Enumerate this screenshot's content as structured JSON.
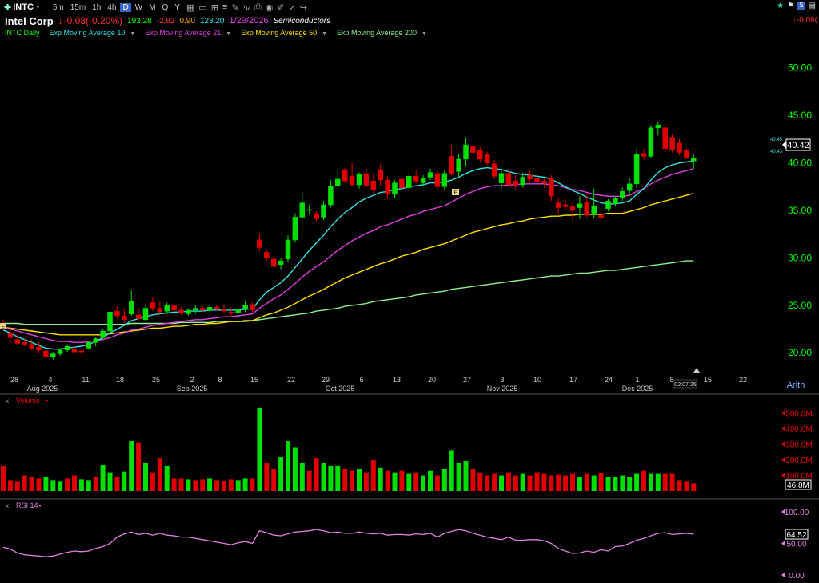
{
  "toolbar": {
    "symbol": "INTC",
    "intervals": [
      "5m",
      "15m",
      "1h",
      "4h",
      "D",
      "W",
      "M",
      "Q",
      "Y"
    ],
    "active_interval": "D"
  },
  "quote": {
    "company": "Intel Corp",
    "change": "-0.08(-0.20%)",
    "v1": "193.28",
    "v2": "-2.82",
    "v3": "0.90",
    "v4": "123.20",
    "date": "1/29/2026",
    "sector": "Semiconductors",
    "right_change": "-0.08("
  },
  "legend": {
    "symbol_label": "INTC Daily",
    "ema10": "Exp Moving Average 10",
    "ema21": "Exp Moving Average 21",
    "ema50": "Exp Moving Average 50",
    "ema200": "Exp Moving Average 200"
  },
  "price_panel": {
    "y_ticks": [
      "50.00",
      "45.00",
      "40.00",
      "35.00",
      "30.00",
      "25.00",
      "20.00"
    ],
    "last_price": "40.42",
    "ema_small_1": "40.45",
    "ema_small_2": "40.43",
    "x_days": [
      "28",
      "4",
      "11",
      "18",
      "25",
      "2",
      "8",
      "15",
      "22",
      "29",
      "6",
      "13",
      "20",
      "27",
      "3",
      "10",
      "17",
      "24",
      "1",
      "8",
      "15",
      "22"
    ],
    "x_months": [
      "Aug 2025",
      "Sep 2025",
      "Oct 2025",
      "Nov 2025",
      "Dec 2025"
    ],
    "scale_label": "Arith",
    "time_stamp": "02:07:25",
    "marker_1": "E",
    "marker_2": "E"
  },
  "volume_panel": {
    "label": "Volume",
    "y_ticks": [
      "500.0M",
      "400.0M",
      "300.0M",
      "200.0M",
      "100.0M"
    ],
    "last_value": "46.8M"
  },
  "rsi_panel": {
    "label": "RSI 14",
    "y_ticks": [
      "100.00",
      "50.00",
      "0.00"
    ],
    "last_value": "64.52"
  },
  "colors": {
    "up": "#00e000",
    "down": "#e00000",
    "ema10": "#33e0e0",
    "ema21": "#e040e0",
    "ema50": "#ffe000",
    "ema200": "#90ee90",
    "rsi": "#e080e0",
    "axis_text": "#00ff00"
  },
  "icons": [
    "add-icon",
    "star-icon",
    "flag-icon"
  ],
  "chart_data": {
    "type": "candlestick",
    "symbol": "INTC",
    "ylim": [
      18.5,
      53
    ],
    "candles": [
      {
        "o": 22.8,
        "h": 23.4,
        "l": 22.3,
        "c": 22.5
      },
      {
        "o": 22.0,
        "h": 22.7,
        "l": 21.0,
        "c": 21.5
      },
      {
        "o": 21.3,
        "h": 21.8,
        "l": 20.7,
        "c": 20.9
      },
      {
        "o": 21.0,
        "h": 21.4,
        "l": 20.6,
        "c": 20.8
      },
      {
        "o": 20.8,
        "h": 21.3,
        "l": 20.2,
        "c": 20.4
      },
      {
        "o": 20.5,
        "h": 21.0,
        "l": 19.9,
        "c": 20.2
      },
      {
        "o": 20.1,
        "h": 20.4,
        "l": 19.3,
        "c": 19.5
      },
      {
        "o": 19.5,
        "h": 20.0,
        "l": 19.2,
        "c": 19.8
      },
      {
        "o": 19.8,
        "h": 20.4,
        "l": 19.6,
        "c": 20.2
      },
      {
        "o": 20.2,
        "h": 20.8,
        "l": 20.0,
        "c": 20.6
      },
      {
        "o": 20.3,
        "h": 20.6,
        "l": 19.8,
        "c": 20.0
      },
      {
        "o": 20.1,
        "h": 20.4,
        "l": 19.8,
        "c": 20.0
      },
      {
        "o": 20.4,
        "h": 21.2,
        "l": 20.3,
        "c": 21.0
      },
      {
        "o": 21.0,
        "h": 21.6,
        "l": 20.6,
        "c": 21.4
      },
      {
        "o": 21.5,
        "h": 22.4,
        "l": 21.3,
        "c": 22.2
      },
      {
        "o": 22.2,
        "h": 24.5,
        "l": 22.0,
        "c": 24.2
      },
      {
        "o": 24.3,
        "h": 24.8,
        "l": 23.5,
        "c": 23.8
      },
      {
        "o": 23.8,
        "h": 24.6,
        "l": 23.0,
        "c": 23.4
      },
      {
        "o": 24.0,
        "h": 26.5,
        "l": 23.8,
        "c": 25.3
      },
      {
        "o": 23.9,
        "h": 24.5,
        "l": 23.3,
        "c": 23.5
      },
      {
        "o": 23.4,
        "h": 24.9,
        "l": 23.2,
        "c": 24.6
      },
      {
        "o": 25.2,
        "h": 25.8,
        "l": 24.3,
        "c": 24.6
      },
      {
        "o": 24.6,
        "h": 25.3,
        "l": 24.0,
        "c": 24.2
      },
      {
        "o": 24.3,
        "h": 25.2,
        "l": 24.0,
        "c": 24.9
      },
      {
        "o": 24.9,
        "h": 25.1,
        "l": 24.2,
        "c": 24.4
      },
      {
        "o": 24.4,
        "h": 24.7,
        "l": 23.9,
        "c": 24.1
      },
      {
        "o": 24.0,
        "h": 24.6,
        "l": 23.8,
        "c": 24.4
      },
      {
        "o": 24.4,
        "h": 24.9,
        "l": 24.0,
        "c": 24.6
      },
      {
        "o": 24.6,
        "h": 24.8,
        "l": 24.2,
        "c": 24.4
      },
      {
        "o": 24.4,
        "h": 24.9,
        "l": 24.2,
        "c": 24.7
      },
      {
        "o": 24.7,
        "h": 24.9,
        "l": 24.3,
        "c": 24.5
      },
      {
        "o": 24.5,
        "h": 24.9,
        "l": 24.1,
        "c": 24.3
      },
      {
        "o": 24.2,
        "h": 24.7,
        "l": 23.8,
        "c": 24.1
      },
      {
        "o": 24.1,
        "h": 24.6,
        "l": 23.7,
        "c": 24.4
      },
      {
        "o": 24.5,
        "h": 25.3,
        "l": 24.2,
        "c": 24.9
      },
      {
        "o": 25.0,
        "h": 25.2,
        "l": 24.2,
        "c": 24.4
      },
      {
        "o": 31.8,
        "h": 32.5,
        "l": 30.6,
        "c": 31.0
      },
      {
        "o": 30.5,
        "h": 30.8,
        "l": 29.6,
        "c": 29.9
      },
      {
        "o": 29.8,
        "h": 30.2,
        "l": 28.8,
        "c": 29.0
      },
      {
        "o": 29.2,
        "h": 29.9,
        "l": 28.7,
        "c": 29.6
      },
      {
        "o": 29.8,
        "h": 32.3,
        "l": 29.4,
        "c": 31.8
      },
      {
        "o": 31.8,
        "h": 34.6,
        "l": 31.5,
        "c": 34.2
      },
      {
        "o": 34.2,
        "h": 36.9,
        "l": 34.1,
        "c": 35.7
      },
      {
        "o": 35.0,
        "h": 35.5,
        "l": 34.5,
        "c": 35.0
      },
      {
        "o": 34.6,
        "h": 34.8,
        "l": 33.8,
        "c": 34.0
      },
      {
        "o": 34.2,
        "h": 35.9,
        "l": 33.9,
        "c": 35.5
      },
      {
        "o": 35.5,
        "h": 38.1,
        "l": 35.2,
        "c": 37.5
      },
      {
        "o": 37.5,
        "h": 39.1,
        "l": 37.2,
        "c": 38.2
      },
      {
        "o": 39.2,
        "h": 39.4,
        "l": 37.8,
        "c": 38.0
      },
      {
        "o": 38.5,
        "h": 39.9,
        "l": 37.4,
        "c": 37.6
      },
      {
        "o": 37.6,
        "h": 38.9,
        "l": 37.2,
        "c": 38.7
      },
      {
        "o": 38.8,
        "h": 39.3,
        "l": 37.3,
        "c": 37.5
      },
      {
        "o": 38.0,
        "h": 38.8,
        "l": 36.7,
        "c": 37.1
      },
      {
        "o": 39.2,
        "h": 39.8,
        "l": 37.5,
        "c": 38.1
      },
      {
        "o": 38.1,
        "h": 38.5,
        "l": 36.1,
        "c": 36.6
      },
      {
        "o": 36.6,
        "h": 38.1,
        "l": 36.2,
        "c": 37.8
      },
      {
        "o": 38.2,
        "h": 38.3,
        "l": 36.6,
        "c": 37.3
      },
      {
        "o": 37.3,
        "h": 38.8,
        "l": 37.1,
        "c": 38.5
      },
      {
        "o": 38.5,
        "h": 39.1,
        "l": 37.7,
        "c": 38.0
      },
      {
        "o": 37.8,
        "h": 38.6,
        "l": 37.6,
        "c": 38.3
      },
      {
        "o": 38.4,
        "h": 39.3,
        "l": 38.1,
        "c": 38.9
      },
      {
        "o": 38.8,
        "h": 39.2,
        "l": 37.0,
        "c": 37.4
      },
      {
        "o": 37.4,
        "h": 39.2,
        "l": 37.0,
        "c": 38.8
      },
      {
        "o": 40.6,
        "h": 41.8,
        "l": 38.6,
        "c": 38.8
      },
      {
        "o": 39.0,
        "h": 40.8,
        "l": 38.5,
        "c": 40.3
      },
      {
        "o": 40.3,
        "h": 42.5,
        "l": 39.6,
        "c": 41.8
      },
      {
        "o": 41.7,
        "h": 41.9,
        "l": 40.8,
        "c": 41.0
      },
      {
        "o": 41.2,
        "h": 41.6,
        "l": 40.0,
        "c": 40.3
      },
      {
        "o": 40.8,
        "h": 41.1,
        "l": 39.7,
        "c": 39.9
      },
      {
        "o": 39.8,
        "h": 40.2,
        "l": 38.2,
        "c": 38.5
      },
      {
        "o": 37.8,
        "h": 39.2,
        "l": 37.2,
        "c": 38.8
      },
      {
        "o": 38.8,
        "h": 39.3,
        "l": 37.4,
        "c": 37.6
      },
      {
        "o": 38.0,
        "h": 38.6,
        "l": 37.1,
        "c": 37.6
      },
      {
        "o": 37.6,
        "h": 38.9,
        "l": 37.3,
        "c": 38.4
      },
      {
        "o": 38.6,
        "h": 39.2,
        "l": 37.8,
        "c": 38.2
      },
      {
        "o": 38.3,
        "h": 38.6,
        "l": 37.6,
        "c": 37.9
      },
      {
        "o": 38.0,
        "h": 38.3,
        "l": 37.3,
        "c": 37.8
      },
      {
        "o": 38.3,
        "h": 38.6,
        "l": 35.9,
        "c": 36.4
      },
      {
        "o": 35.7,
        "h": 36.2,
        "l": 34.6,
        "c": 35.2
      },
      {
        "o": 35.5,
        "h": 36.1,
        "l": 34.9,
        "c": 35.3
      },
      {
        "o": 35.3,
        "h": 35.7,
        "l": 33.8,
        "c": 34.9
      },
      {
        "o": 35.2,
        "h": 36.4,
        "l": 34.0,
        "c": 35.6
      },
      {
        "o": 35.8,
        "h": 36.5,
        "l": 34.2,
        "c": 34.4
      },
      {
        "o": 34.6,
        "h": 37.2,
        "l": 34.1,
        "c": 35.4
      },
      {
        "o": 34.4,
        "h": 35.1,
        "l": 33.1,
        "c": 34.1
      },
      {
        "o": 35.1,
        "h": 36.1,
        "l": 34.8,
        "c": 35.9
      },
      {
        "o": 35.6,
        "h": 36.4,
        "l": 35.3,
        "c": 36.2
      },
      {
        "o": 36.2,
        "h": 37.3,
        "l": 35.9,
        "c": 36.9
      },
      {
        "o": 37.0,
        "h": 38.3,
        "l": 36.7,
        "c": 37.7
      },
      {
        "o": 37.7,
        "h": 41.4,
        "l": 37.3,
        "c": 40.8
      },
      {
        "o": 40.9,
        "h": 41.4,
        "l": 40.2,
        "c": 40.6
      },
      {
        "o": 40.6,
        "h": 43.9,
        "l": 40.4,
        "c": 43.6
      },
      {
        "o": 43.6,
        "h": 44.2,
        "l": 42.8,
        "c": 43.9
      },
      {
        "o": 43.6,
        "h": 43.7,
        "l": 41.1,
        "c": 41.4
      },
      {
        "o": 42.6,
        "h": 42.9,
        "l": 41.0,
        "c": 41.3
      },
      {
        "o": 42.0,
        "h": 42.4,
        "l": 40.7,
        "c": 41.0
      },
      {
        "o": 41.2,
        "h": 41.4,
        "l": 40.3,
        "c": 40.5
      },
      {
        "o": 40.1,
        "h": 40.8,
        "l": 39.3,
        "c": 40.4
      }
    ],
    "ema10": [
      22.3,
      22.0,
      21.6,
      21.3,
      21.0,
      20.7,
      20.4,
      20.3,
      20.3,
      20.4,
      20.5,
      20.6,
      20.8,
      21.1,
      21.5,
      22.0,
      22.4,
      22.8,
      23.3,
      23.5,
      23.7,
      23.9,
      24.0,
      24.1,
      24.2,
      24.2,
      24.3,
      24.3,
      24.3,
      24.4,
      24.4,
      24.4,
      24.4,
      24.4,
      24.5,
      24.5,
      25.5,
      26.3,
      26.8,
      27.3,
      28.0,
      28.9,
      29.8,
      30.7,
      31.5,
      32.3,
      33.2,
      34.0,
      34.7,
      35.2,
      35.8,
      36.2,
      36.5,
      36.8,
      36.9,
      37.1,
      37.2,
      37.4,
      37.5,
      37.6,
      37.8,
      37.8,
      37.9,
      38.1,
      38.4,
      38.8,
      39.1,
      39.3,
      39.4,
      39.3,
      39.2,
      39.0,
      38.8,
      38.7,
      38.6,
      38.5,
      38.4,
      38.2,
      37.8,
      37.4,
      37.0,
      36.7,
      36.3,
      36.0,
      35.7,
      35.6,
      35.6,
      35.7,
      35.9,
      36.6,
      37.2,
      38.1,
      38.9,
      39.4,
      39.7,
      39.9,
      40.0,
      40.1
    ],
    "ema21": [
      22.6,
      22.4,
      22.2,
      22.0,
      21.8,
      21.6,
      21.4,
      21.2,
      21.1,
      21.1,
      21.0,
      21.0,
      21.1,
      21.2,
      21.3,
      21.5,
      21.8,
      22.0,
      22.3,
      22.4,
      22.6,
      22.8,
      22.9,
      23.0,
      23.1,
      23.2,
      23.3,
      23.4,
      23.4,
      23.5,
      23.6,
      23.7,
      23.7,
      23.8,
      23.9,
      24.0,
      24.6,
      25.1,
      25.6,
      26.0,
      26.6,
      27.2,
      27.9,
      28.5,
      29.0,
      29.5,
      30.1,
      30.7,
      31.2,
      31.7,
      32.1,
      32.5,
      32.8,
      33.2,
      33.4,
      33.7,
      34.0,
      34.3,
      34.5,
      34.8,
      35.0,
      35.2,
      35.4,
      35.8,
      36.2,
      36.6,
      36.9,
      37.2,
      37.4,
      37.5,
      37.5,
      37.6,
      37.6,
      37.7,
      37.7,
      37.7,
      37.7,
      37.6,
      37.5,
      37.3,
      37.1,
      37.0,
      36.8,
      36.6,
      36.5,
      36.4,
      36.4,
      36.4,
      36.5,
      36.9,
      37.2,
      37.7,
      38.1,
      38.4,
      38.7,
      38.9,
      39.1,
      39.3
    ],
    "ema50": [
      22.6,
      22.5,
      22.4,
      22.3,
      22.2,
      22.1,
      22.0,
      21.9,
      21.8,
      21.8,
      21.8,
      21.8,
      21.8,
      21.8,
      21.8,
      21.9,
      22.0,
      22.1,
      22.2,
      22.3,
      22.4,
      22.5,
      22.5,
      22.6,
      22.7,
      22.7,
      22.8,
      22.9,
      22.9,
      23.0,
      23.0,
      23.1,
      23.2,
      23.2,
      23.3,
      23.3,
      23.6,
      23.9,
      24.1,
      24.4,
      24.7,
      25.1,
      25.5,
      25.9,
      26.2,
      26.6,
      27.0,
      27.4,
      27.8,
      28.1,
      28.4,
      28.7,
      29.0,
      29.3,
      29.5,
      29.8,
      30.1,
      30.3,
      30.5,
      30.8,
      31.0,
      31.2,
      31.4,
      31.7,
      32.0,
      32.3,
      32.6,
      32.8,
      33.0,
      33.2,
      33.4,
      33.5,
      33.7,
      33.8,
      34.0,
      34.1,
      34.2,
      34.3,
      34.3,
      34.4,
      34.4,
      34.5,
      34.5,
      34.5,
      34.5,
      34.6,
      34.6,
      34.6,
      34.8,
      35.0,
      35.2,
      35.5,
      35.7,
      35.9,
      36.1,
      36.3,
      36.5,
      36.7
    ],
    "ema200": [
      23.0,
      23.0,
      23.0,
      22.9,
      22.9,
      22.9,
      22.9,
      22.9,
      22.9,
      22.9,
      22.9,
      22.9,
      22.9,
      22.9,
      22.9,
      22.9,
      22.9,
      22.9,
      23.0,
      23.0,
      23.0,
      23.0,
      23.0,
      23.0,
      23.0,
      23.1,
      23.1,
      23.1,
      23.1,
      23.1,
      23.2,
      23.2,
      23.2,
      23.2,
      23.2,
      23.3,
      23.4,
      23.5,
      23.6,
      23.7,
      23.8,
      23.9,
      24.0,
      24.1,
      24.3,
      24.4,
      24.5,
      24.6,
      24.8,
      24.9,
      25.0,
      25.1,
      25.3,
      25.4,
      25.5,
      25.6,
      25.7,
      25.8,
      26.0,
      26.1,
      26.2,
      26.3,
      26.4,
      26.6,
      26.7,
      26.8,
      26.9,
      27.0,
      27.1,
      27.2,
      27.3,
      27.4,
      27.5,
      27.6,
      27.7,
      27.8,
      27.9,
      28.0,
      28.0,
      28.1,
      28.2,
      28.3,
      28.3,
      28.4,
      28.5,
      28.6,
      28.6,
      28.7,
      28.8,
      28.9,
      29.0,
      29.1,
      29.2,
      29.3,
      29.4,
      29.5,
      29.6,
      29.6
    ],
    "volume_millions": [
      160,
      70,
      60,
      100,
      90,
      80,
      90,
      70,
      60,
      80,
      100,
      75,
      70,
      90,
      170,
      120,
      90,
      125,
      320,
      310,
      180,
      120,
      210,
      160,
      80,
      80,
      75,
      70,
      75,
      80,
      70,
      65,
      75,
      70,
      80,
      80,
      535,
      180,
      140,
      220,
      320,
      280,
      180,
      130,
      210,
      180,
      160,
      160,
      140,
      130,
      140,
      120,
      200,
      150,
      130,
      120,
      130,
      110,
      120,
      100,
      130,
      100,
      140,
      260,
      180,
      190,
      140,
      120,
      100,
      110,
      100,
      120,
      100,
      110,
      100,
      120,
      110,
      100,
      105,
      100,
      110,
      90,
      110,
      100,
      115,
      90,
      90,
      100,
      90,
      110,
      130,
      110,
      110,
      110,
      110,
      70,
      60,
      50
    ],
    "volume_up": [
      false,
      false,
      false,
      false,
      false,
      false,
      true,
      true,
      true,
      false,
      false,
      true,
      true,
      false,
      true,
      true,
      false,
      true,
      true,
      false,
      true,
      false,
      false,
      true,
      false,
      false,
      true,
      false,
      false,
      true,
      false,
      false,
      false,
      true,
      true,
      false,
      true,
      false,
      false,
      true,
      true,
      true,
      true,
      false,
      false,
      true,
      true,
      true,
      false,
      false,
      true,
      false,
      false,
      true,
      false,
      true,
      false,
      true,
      false,
      true,
      true,
      false,
      true,
      true,
      true,
      true,
      false,
      false,
      false,
      false,
      true,
      false,
      false,
      true,
      false,
      false,
      false,
      false,
      false,
      false,
      false,
      true,
      false,
      true,
      false,
      true,
      true,
      true,
      true,
      true,
      false,
      true,
      true,
      false,
      false,
      false,
      false,
      false
    ],
    "rsi": [
      44,
      41,
      35,
      32,
      31,
      30,
      29,
      30,
      33,
      36,
      38,
      37,
      38,
      42,
      45,
      50,
      60,
      65,
      68,
      64,
      66,
      63,
      66,
      63,
      62,
      60,
      60,
      58,
      56,
      54,
      52,
      50,
      48,
      51,
      53,
      50,
      70,
      67,
      63,
      62,
      65,
      68,
      69,
      70,
      72,
      70,
      67,
      68,
      66,
      66,
      68,
      66,
      65,
      66,
      63,
      64,
      64,
      63,
      65,
      64,
      66,
      60,
      66,
      69,
      72,
      70,
      66,
      63,
      60,
      58,
      56,
      60,
      55,
      55,
      56,
      56,
      54,
      50,
      42,
      38,
      34,
      35,
      38,
      36,
      40,
      38,
      45,
      46,
      50,
      55,
      58,
      62,
      66,
      67,
      64,
      65,
      66,
      64.52
    ]
  }
}
